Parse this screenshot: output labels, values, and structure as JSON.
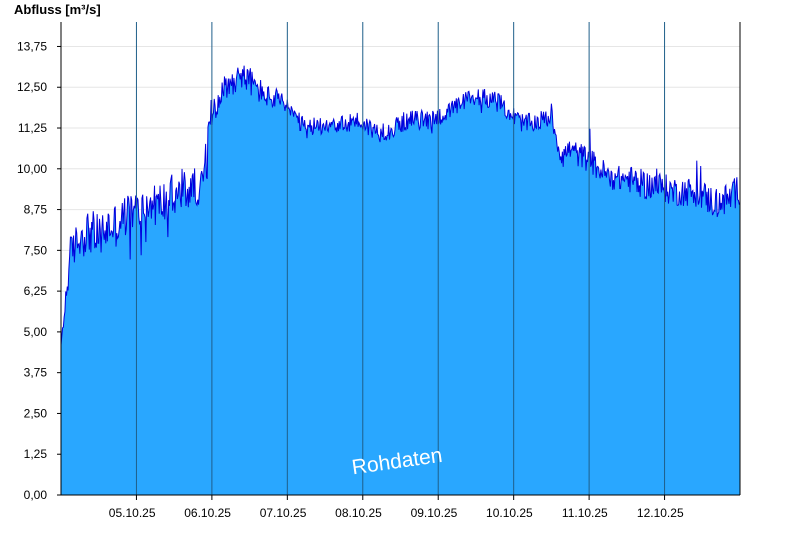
{
  "chart_data": {
    "type": "area",
    "ylabel": "Abfluss [m³/s]",
    "ylim": [
      0,
      14.5
    ],
    "yticks": [
      "0,00",
      "1,25",
      "2,50",
      "3,75",
      "5,00",
      "6,25",
      "7,50",
      "8,75",
      "10,00",
      "11,25",
      "12,50",
      "13,75"
    ],
    "ytick_values": [
      0,
      1.25,
      2.5,
      3.75,
      5.0,
      6.25,
      7.5,
      8.75,
      10.0,
      11.25,
      12.5,
      13.75
    ],
    "x_start": "04.10.25 00:00",
    "x_end": "12.10.25 24:00",
    "xtick_labels": [
      "05.10.25",
      "06.10.25",
      "07.10.25",
      "08.10.25",
      "09.10.25",
      "10.10.25",
      "11.10.25",
      "12.10.25"
    ],
    "grid": true,
    "colors": {
      "fill": "#29a7ff",
      "line": "#0000dd",
      "day_separator": "#1f5f8a",
      "grid": "#e6e6e6"
    },
    "watermark": "Rohdaten",
    "series": [
      {
        "x": [
          "04.10.25 00:00",
          "04.10.25 03:00",
          "04.10.25 06:00",
          "04.10.25 09:00",
          "04.10.25 12:00",
          "04.10.25 15:00",
          "04.10.25 18:00",
          "04.10.25 21:00",
          "05.10.25 00:00",
          "05.10.25 03:00",
          "05.10.25 06:00",
          "05.10.25 09:00",
          "05.10.25 12:00",
          "05.10.25 15:00",
          "05.10.25 18:00",
          "05.10.25 21:00",
          "06.10.25 00:00",
          "06.10.25 03:00",
          "06.10.25 06:00",
          "06.10.25 09:00",
          "06.10.25 12:00",
          "06.10.25 15:00",
          "06.10.25 18:00",
          "06.10.25 21:00",
          "07.10.25 00:00",
          "07.10.25 03:00",
          "07.10.25 06:00",
          "07.10.25 09:00",
          "07.10.25 12:00",
          "07.10.25 15:00",
          "07.10.25 18:00",
          "07.10.25 21:00",
          "08.10.25 00:00",
          "08.10.25 03:00",
          "08.10.25 06:00",
          "08.10.25 09:00",
          "08.10.25 12:00",
          "08.10.25 15:00",
          "08.10.25 18:00",
          "08.10.25 21:00",
          "09.10.25 00:00",
          "09.10.25 03:00",
          "09.10.25 06:00",
          "09.10.25 09:00",
          "09.10.25 12:00",
          "09.10.25 15:00",
          "09.10.25 18:00",
          "09.10.25 21:00",
          "10.10.25 00:00",
          "10.10.25 03:00",
          "10.10.25 06:00",
          "10.10.25 09:00",
          "10.10.25 12:00",
          "10.10.25 15:00",
          "10.10.25 18:00",
          "10.10.25 21:00",
          "11.10.25 00:00",
          "11.10.25 03:00",
          "11.10.25 06:00",
          "11.10.25 09:00",
          "11.10.25 12:00",
          "11.10.25 15:00",
          "11.10.25 18:00",
          "11.10.25 21:00",
          "12.10.25 00:00",
          "12.10.25 03:00",
          "12.10.25 06:00",
          "12.10.25 09:00",
          "12.10.25 12:00",
          "12.10.25 15:00",
          "12.10.25 18:00",
          "12.10.25 21:00",
          "12.10.25 24:00"
        ],
        "values": [
          4.6,
          7.4,
          7.9,
          8.1,
          7.9,
          8.2,
          8.3,
          8.6,
          8.7,
          8.8,
          8.9,
          9.0,
          9.1,
          9.3,
          9.4,
          9.5,
          11.8,
          12.4,
          12.6,
          12.9,
          12.7,
          12.4,
          12.2,
          12.1,
          11.9,
          11.5,
          11.2,
          11.3,
          11.4,
          11.4,
          11.3,
          11.5,
          11.4,
          11.2,
          11.1,
          11.2,
          11.4,
          11.5,
          11.5,
          11.5,
          11.6,
          11.7,
          11.9,
          12.1,
          12.2,
          12.2,
          12.1,
          11.9,
          11.6,
          11.4,
          11.4,
          11.5,
          11.6,
          10.4,
          10.6,
          10.4,
          10.3,
          10.0,
          9.8,
          9.7,
          9.7,
          9.6,
          9.5,
          9.5,
          9.4,
          9.3,
          9.3,
          9.3,
          9.2,
          9.0,
          9.0,
          9.1,
          9.4
        ],
        "noise": [
          0.5,
          1.1,
          1.3,
          1.4,
          1.4,
          1.4,
          1.4,
          1.3,
          1.3,
          1.3,
          1.3,
          1.3,
          1.3,
          1.3,
          1.3,
          1.0,
          1.1,
          0.9,
          0.8,
          0.8,
          0.9,
          0.8,
          0.7,
          0.7,
          0.6,
          0.6,
          0.6,
          0.6,
          0.6,
          0.6,
          0.6,
          0.6,
          0.6,
          0.6,
          0.6,
          0.6,
          0.6,
          0.6,
          0.6,
          0.6,
          0.6,
          0.6,
          0.6,
          0.6,
          0.6,
          0.6,
          0.6,
          0.6,
          0.6,
          0.6,
          0.6,
          0.6,
          0.6,
          0.6,
          0.7,
          0.8,
          0.8,
          0.8,
          0.8,
          0.8,
          0.8,
          0.9,
          0.9,
          0.9,
          0.9,
          0.9,
          0.9,
          0.9,
          0.9,
          1.0,
          1.0,
          1.0,
          1.0
        ]
      }
    ]
  }
}
